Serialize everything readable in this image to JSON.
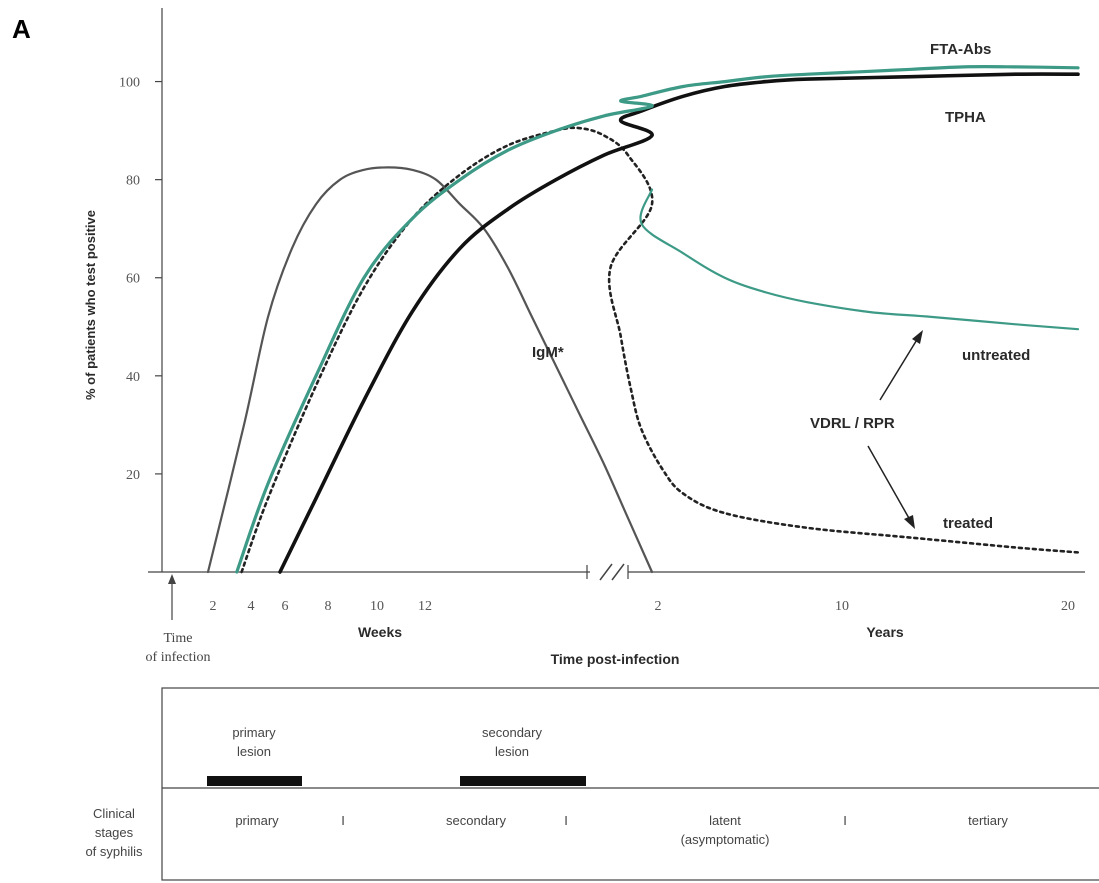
{
  "panel_label": "A",
  "colors": {
    "fta_abs": "#3d9a86",
    "tpha": "#111111",
    "igm": "#555555",
    "vdrl": "#222222",
    "vdrl_untreated": "#3d9a86"
  },
  "chart_data": {
    "type": "line",
    "ylabel": "% of patients who test positive",
    "xlabel": "Time post-infection",
    "x_origin_label": [
      "Time",
      "of infection"
    ],
    "ylim": [
      0,
      115
    ],
    "y_ticks": [
      "100",
      "80",
      "60",
      "40",
      "20"
    ],
    "weeks_axis": {
      "label": "Weeks",
      "ticks": [
        "2",
        "4",
        "6",
        "8",
        "10",
        "12"
      ]
    },
    "years_axis": {
      "label": "Years",
      "ticks": [
        "2",
        "10",
        "20"
      ]
    },
    "grid": false,
    "series": [
      {
        "name": "FTA-Abs",
        "points": [
          [
            2.7,
            0
          ],
          [
            4,
            18
          ],
          [
            6,
            40
          ],
          [
            8,
            60
          ],
          [
            10,
            72
          ],
          [
            12,
            80
          ],
          [
            14,
            86
          ],
          [
            16,
            90
          ],
          [
            18,
            93
          ],
          [
            20,
            95
          ],
          [
            22,
            96
          ],
          [
            24,
            97
          ],
          [
            28,
            99
          ],
          [
            32,
            100
          ],
          [
            36,
            101
          ],
          [
            40,
            101.5
          ],
          [
            45,
            102
          ],
          [
            50,
            102.5
          ],
          [
            55,
            103
          ],
          [
            60,
            103
          ],
          [
            66,
            102.8
          ]
        ]
      },
      {
        "name": "TPHA",
        "points": [
          [
            4.5,
            0
          ],
          [
            6,
            15
          ],
          [
            8,
            35
          ],
          [
            10,
            53
          ],
          [
            12,
            66
          ],
          [
            14,
            74
          ],
          [
            16,
            80
          ],
          [
            18,
            85
          ],
          [
            20,
            89
          ],
          [
            22,
            92
          ],
          [
            24,
            94
          ],
          [
            28,
            97
          ],
          [
            32,
            99
          ],
          [
            36,
            100
          ],
          [
            40,
            100.5
          ],
          [
            50,
            101
          ],
          [
            60,
            101.5
          ],
          [
            66,
            101.5
          ]
        ]
      },
      {
        "name": "IgM*",
        "points": [
          [
            1.5,
            0
          ],
          [
            3,
            30
          ],
          [
            4,
            52
          ],
          [
            5,
            66
          ],
          [
            6,
            75
          ],
          [
            7,
            80
          ],
          [
            8,
            82
          ],
          [
            9,
            82.5
          ],
          [
            10,
            82
          ],
          [
            11,
            80
          ],
          [
            12,
            75
          ],
          [
            13,
            70
          ],
          [
            14,
            62
          ],
          [
            15,
            52
          ],
          [
            16,
            42
          ],
          [
            17,
            32
          ],
          [
            18,
            22
          ],
          [
            19,
            11
          ],
          [
            20,
            0
          ]
        ]
      },
      {
        "name": "VDRL / RPR",
        "points": [
          [
            2.9,
            0
          ],
          [
            4,
            15
          ],
          [
            6,
            38
          ],
          [
            8,
            58
          ],
          [
            10,
            72
          ],
          [
            12,
            81
          ],
          [
            14,
            87
          ],
          [
            16,
            90
          ],
          [
            17,
            90.5
          ],
          [
            18,
            89
          ],
          [
            19,
            85
          ],
          [
            20,
            75
          ],
          [
            21,
            62
          ],
          [
            22,
            48
          ],
          [
            23,
            37
          ],
          [
            24,
            29
          ],
          [
            26,
            21
          ],
          [
            28,
            16
          ],
          [
            32,
            12
          ],
          [
            40,
            9
          ],
          [
            50,
            7
          ],
          [
            60,
            5
          ],
          [
            66,
            4
          ]
        ]
      },
      {
        "name": "untreated",
        "points": [
          [
            20,
            78
          ],
          [
            24,
            71
          ],
          [
            28,
            65
          ],
          [
            32,
            60
          ],
          [
            36,
            57
          ],
          [
            40,
            55
          ],
          [
            46,
            53
          ],
          [
            52,
            52
          ],
          [
            60,
            50.5
          ],
          [
            66,
            49.5
          ]
        ]
      }
    ],
    "annotations": [
      "FTA-Abs",
      "TPHA",
      "IgM*",
      "untreated",
      "VDRL / RPR",
      "treated"
    ]
  },
  "stages": {
    "lesions": [
      {
        "label_line1": "primary",
        "label_line2": "lesion"
      },
      {
        "label_line1": "secondary",
        "label_line2": "lesion"
      }
    ],
    "row_label": [
      "Clinical",
      "stages",
      "of syphilis"
    ],
    "items": [
      "primary",
      "I",
      "secondary",
      "I",
      "latent",
      "I",
      "tertiary"
    ],
    "latent_sub": "(asymptomatic)"
  }
}
